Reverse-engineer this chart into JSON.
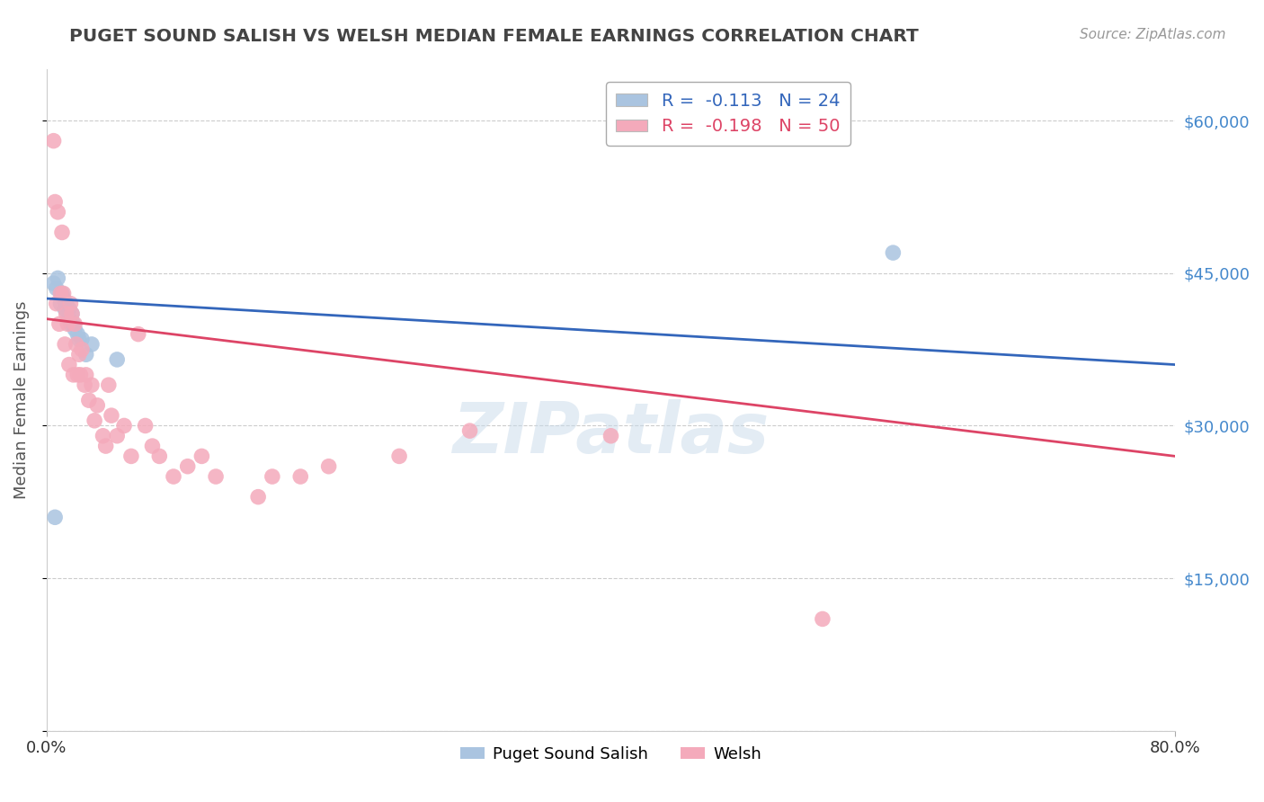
{
  "title": "PUGET SOUND SALISH VS WELSH MEDIAN FEMALE EARNINGS CORRELATION CHART",
  "source": "Source: ZipAtlas.com",
  "ylabel": "Median Female Earnings",
  "x_min": 0.0,
  "x_max": 0.8,
  "y_min": 0,
  "y_max": 65000,
  "yticks": [
    0,
    15000,
    30000,
    45000,
    60000
  ],
  "xticks": [
    0.0,
    0.8
  ],
  "xtick_labels": [
    "0.0%",
    "80.0%"
  ],
  "background_color": "#ffffff",
  "grid_color": "#cccccc",
  "series": [
    {
      "name": "Puget Sound Salish",
      "R": -0.113,
      "N": 24,
      "color": "#aac4e0",
      "line_color": "#3366bb",
      "trend_y0": 42500,
      "trend_y1": 36000,
      "x": [
        0.005,
        0.007,
        0.008,
        0.01,
        0.01,
        0.011,
        0.012,
        0.013,
        0.014,
        0.015,
        0.016,
        0.016,
        0.017,
        0.018,
        0.019,
        0.02,
        0.022,
        0.023,
        0.025,
        0.028,
        0.032,
        0.05,
        0.6,
        0.006
      ],
      "y": [
        44000,
        43500,
        44500,
        43000,
        42000,
        43000,
        42500,
        41500,
        42000,
        41000,
        41500,
        40500,
        40000,
        41000,
        40000,
        39500,
        39000,
        38500,
        38500,
        37000,
        38000,
        36500,
        47000,
        21000
      ]
    },
    {
      "name": "Welsh",
      "R": -0.198,
      "N": 50,
      "color": "#f4aabb",
      "line_color": "#dd4466",
      "trend_y0": 40500,
      "trend_y1": 27000,
      "x": [
        0.005,
        0.006,
        0.007,
        0.008,
        0.009,
        0.01,
        0.011,
        0.012,
        0.013,
        0.014,
        0.015,
        0.016,
        0.017,
        0.018,
        0.019,
        0.02,
        0.021,
        0.022,
        0.023,
        0.024,
        0.025,
        0.027,
        0.028,
        0.03,
        0.032,
        0.034,
        0.036,
        0.04,
        0.042,
        0.044,
        0.046,
        0.05,
        0.055,
        0.06,
        0.065,
        0.07,
        0.075,
        0.08,
        0.09,
        0.1,
        0.11,
        0.12,
        0.15,
        0.16,
        0.18,
        0.2,
        0.25,
        0.3,
        0.4,
        0.55
      ],
      "y": [
        58000,
        52000,
        42000,
        51000,
        40000,
        43000,
        49000,
        43000,
        38000,
        41000,
        40000,
        36000,
        42000,
        41000,
        35000,
        40000,
        38000,
        35000,
        37000,
        35000,
        37500,
        34000,
        35000,
        32500,
        34000,
        30500,
        32000,
        29000,
        28000,
        34000,
        31000,
        29000,
        30000,
        27000,
        39000,
        30000,
        28000,
        27000,
        25000,
        26000,
        27000,
        25000,
        23000,
        25000,
        25000,
        26000,
        27000,
        29500,
        29000,
        11000
      ]
    }
  ],
  "legend_R_label": [
    "R =  -0.113",
    "R =  -0.198"
  ],
  "legend_N_label": [
    "N = 24",
    "N = 50"
  ],
  "title_color": "#444444",
  "axis_label_color": "#555555",
  "right_tick_color": "#4488cc",
  "watermark": "ZIPatlas"
}
